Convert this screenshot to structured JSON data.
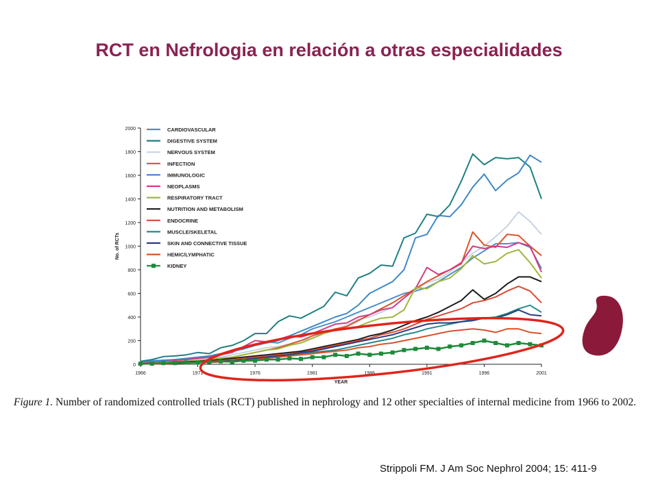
{
  "slide": {
    "title": "RCT en Nefrologia en relación a otras especialidades",
    "caption_figure": "Figure 1.",
    "caption_text": " Number of randomized controlled trials (RCT) published in nephrology and 12 other specialties of internal medicine from 1966 to 2002.",
    "citation": "Strippoli FM. J Am Soc Nephrol 2004; 15: 411-9",
    "kidney_icon": "kidney-icon",
    "highlight_color": "#E0241B",
    "kidney_color": "#8B1A3A"
  },
  "chart_data": {
    "type": "line",
    "xlabel": "YEAR",
    "ylabel": "No. of RCTs",
    "xlim": [
      1966,
      2001
    ],
    "ylim": [
      0,
      2000
    ],
    "xticks": [
      1966,
      1971,
      1976,
      1981,
      1986,
      1991,
      1996,
      2001
    ],
    "yticks": [
      0,
      200,
      400,
      600,
      800,
      1000,
      1200,
      1400,
      1600,
      1800,
      2000
    ],
    "legend_position": "top-left",
    "x": [
      1966,
      1967,
      1968,
      1969,
      1970,
      1971,
      1972,
      1973,
      1974,
      1975,
      1976,
      1977,
      1978,
      1979,
      1980,
      1981,
      1982,
      1983,
      1984,
      1985,
      1986,
      1987,
      1988,
      1989,
      1990,
      1991,
      1992,
      1993,
      1994,
      1995,
      1996,
      1997,
      1998,
      1999,
      2000,
      2001
    ],
    "series": [
      {
        "name": "CARDIOVASCULAR",
        "color": "#4F8FC9",
        "values": [
          20,
          30,
          35,
          40,
          45,
          50,
          60,
          80,
          110,
          130,
          160,
          190,
          180,
          220,
          250,
          300,
          330,
          360,
          400,
          440,
          480,
          520,
          560,
          600,
          620,
          650,
          700,
          760,
          820,
          900,
          960,
          1020,
          1020,
          1030,
          990,
          810
        ]
      },
      {
        "name": "DIGESTIVE SYSTEM",
        "color": "#1F7F7F",
        "values": [
          25,
          40,
          65,
          70,
          80,
          100,
          90,
          140,
          160,
          200,
          260,
          260,
          360,
          410,
          390,
          440,
          490,
          610,
          580,
          730,
          770,
          840,
          830,
          1070,
          1110,
          1270,
          1250,
          1350,
          1550,
          1780,
          1690,
          1750,
          1740,
          1750,
          1670,
          1400
        ]
      },
      {
        "name": "NERVOUS SYSTEM",
        "color": "#C8D3E0",
        "values": [
          5,
          10,
          15,
          20,
          30,
          40,
          50,
          60,
          80,
          100,
          120,
          140,
          150,
          170,
          200,
          220,
          260,
          290,
          330,
          380,
          400,
          440,
          480,
          560,
          630,
          690,
          720,
          780,
          860,
          940,
          1000,
          1080,
          1170,
          1290,
          1210,
          1100
        ]
      },
      {
        "name": "INFECTION",
        "color": "#D9552B",
        "values": [
          5,
          10,
          15,
          20,
          25,
          30,
          40,
          50,
          60,
          80,
          100,
          120,
          140,
          170,
          200,
          240,
          270,
          300,
          320,
          370,
          420,
          470,
          520,
          580,
          640,
          700,
          750,
          800,
          850,
          1120,
          1010,
          990,
          1100,
          1090,
          1000,
          920
        ]
      },
      {
        "name": "IMMUNOLOGIC",
        "color": "#3F88C8",
        "values": [
          10,
          20,
          30,
          40,
          50,
          60,
          70,
          90,
          110,
          130,
          160,
          180,
          200,
          240,
          280,
          320,
          360,
          400,
          430,
          500,
          600,
          650,
          700,
          800,
          1070,
          1100,
          1260,
          1250,
          1350,
          1500,
          1610,
          1470,
          1560,
          1620,
          1770,
          1710
        ]
      },
      {
        "name": "NEOPLASMS",
        "color": "#D43C84",
        "values": [
          10,
          15,
          20,
          30,
          40,
          50,
          60,
          80,
          100,
          150,
          200,
          190,
          210,
          240,
          230,
          260,
          300,
          340,
          350,
          400,
          420,
          460,
          480,
          560,
          640,
          820,
          760,
          800,
          860,
          1000,
          980,
          1000,
          990,
          1030,
          1000,
          780
        ]
      },
      {
        "name": "RESPIRATORY TRACT",
        "color": "#9CB83C",
        "values": [
          5,
          10,
          15,
          20,
          25,
          30,
          40,
          50,
          60,
          80,
          100,
          120,
          130,
          160,
          180,
          220,
          260,
          290,
          300,
          320,
          360,
          390,
          400,
          460,
          650,
          640,
          700,
          730,
          810,
          920,
          850,
          870,
          940,
          970,
          860,
          730
        ]
      },
      {
        "name": "NUTRITION AND METABOLISM",
        "color": "#1A1A1A",
        "values": [
          5,
          8,
          10,
          15,
          20,
          25,
          30,
          40,
          50,
          60,
          70,
          80,
          90,
          100,
          110,
          130,
          150,
          170,
          190,
          210,
          240,
          260,
          290,
          330,
          370,
          400,
          440,
          490,
          540,
          630,
          550,
          600,
          680,
          740,
          740,
          700
        ]
      },
      {
        "name": "ENDOCRINE",
        "color": "#D94A32",
        "values": [
          3,
          5,
          8,
          10,
          15,
          20,
          25,
          30,
          40,
          50,
          60,
          70,
          80,
          90,
          100,
          120,
          140,
          160,
          180,
          200,
          220,
          250,
          270,
          300,
          340,
          380,
          410,
          440,
          470,
          520,
          540,
          570,
          620,
          660,
          620,
          520
        ]
      },
      {
        "name": "MUSCLE/SKELETAL",
        "color": "#238A8A",
        "values": [
          3,
          5,
          8,
          10,
          12,
          15,
          20,
          25,
          30,
          40,
          50,
          60,
          70,
          80,
          90,
          100,
          110,
          120,
          140,
          160,
          180,
          200,
          220,
          250,
          270,
          300,
          320,
          340,
          360,
          380,
          390,
          400,
          430,
          470,
          500,
          440
        ]
      },
      {
        "name": "SKIN AND CONNECTIVE TISSUE",
        "color": "#2A3A82",
        "values": [
          3,
          5,
          8,
          10,
          12,
          15,
          20,
          25,
          30,
          40,
          50,
          60,
          70,
          80,
          100,
          110,
          130,
          150,
          170,
          190,
          210,
          230,
          250,
          280,
          310,
          340,
          350,
          350,
          360,
          370,
          390,
          390,
          420,
          460,
          420,
          410
        ]
      },
      {
        "name": "HEMIC/LYMPHATIC",
        "color": "#D9502A",
        "values": [
          2,
          3,
          5,
          8,
          10,
          12,
          15,
          20,
          25,
          30,
          40,
          50,
          60,
          70,
          80,
          90,
          100,
          110,
          120,
          140,
          150,
          170,
          180,
          200,
          220,
          240,
          260,
          280,
          290,
          300,
          290,
          270,
          300,
          300,
          270,
          260
        ]
      },
      {
        "name": "KIDNEY",
        "color": "#1E8A3A",
        "values": [
          5,
          5,
          10,
          10,
          15,
          15,
          20,
          25,
          20,
          30,
          30,
          40,
          40,
          50,
          45,
          60,
          60,
          80,
          70,
          90,
          80,
          90,
          100,
          120,
          130,
          140,
          130,
          150,
          160,
          180,
          200,
          180,
          160,
          180,
          170,
          160
        ]
      }
    ]
  }
}
